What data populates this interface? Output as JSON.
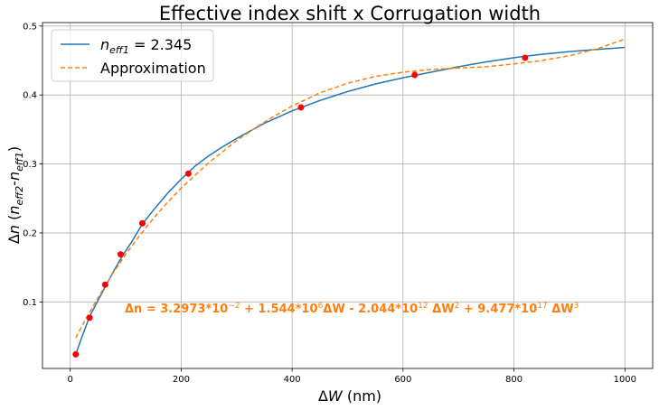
{
  "chart_data": {
    "type": "line",
    "title": "Effective index shift x Corrugation width",
    "xlabel_prefix": "Δ",
    "xlabel_var": "W",
    "xlabel_suffix": " (nm)",
    "ylabel_prefix": "Δ",
    "ylabel_var": "n",
    "ylabel_open": " (",
    "ylabel_n1": "n",
    "ylabel_sub1": "eff2",
    "ylabel_dash": "-",
    "ylabel_n2": "n",
    "ylabel_sub2": "eff1",
    "ylabel_close": ")",
    "xlim": [
      -50,
      1050
    ],
    "ylim": [
      0.0035,
      0.505
    ],
    "xticks": [
      0,
      200,
      400,
      600,
      800,
      1000
    ],
    "xtick_labels": [
      "0",
      "200",
      "400",
      "600",
      "800",
      "1000"
    ],
    "yticks": [
      0.1,
      0.2,
      0.3,
      0.4,
      0.5
    ],
    "ytick_labels": [
      "0.1",
      "0.2",
      "0.3",
      "0.4",
      "0.5"
    ],
    "grid": true,
    "legend_position": "top-left",
    "series": [
      {
        "name": "n_eff1 = 2.345",
        "legend_var": "n",
        "legend_sub": "eff1",
        "legend_value": " = 2.345",
        "style": "solid",
        "color": "#1f77b4",
        "x": [
          10,
          20,
          35,
          50,
          65,
          80,
          95,
          110,
          130,
          150,
          175,
          200,
          225,
          250,
          275,
          300,
          350,
          400,
          450,
          500,
          550,
          600,
          650,
          700,
          750,
          800,
          850,
          900,
          950,
          1000
        ],
        "y": [
          0.024,
          0.047,
          0.079,
          0.102,
          0.125,
          0.147,
          0.168,
          0.186,
          0.213,
          0.233,
          0.257,
          0.278,
          0.297,
          0.312,
          0.325,
          0.337,
          0.359,
          0.377,
          0.392,
          0.405,
          0.416,
          0.425,
          0.433,
          0.441,
          0.448,
          0.454,
          0.459,
          0.463,
          0.466,
          0.469
        ]
      },
      {
        "name": "Approximation",
        "legend_label": "Approximation",
        "style": "dashed",
        "color": "#ff7f0e",
        "x": [
          10,
          30,
          50,
          75,
          100,
          125,
          150,
          175,
          200,
          250,
          300,
          350,
          400,
          450,
          500,
          550,
          600,
          650,
          700,
          750,
          800,
          850,
          900,
          950,
          1000
        ],
        "y": [
          0.048,
          0.078,
          0.106,
          0.139,
          0.169,
          0.196,
          0.221,
          0.244,
          0.265,
          0.302,
          0.334,
          0.361,
          0.384,
          0.403,
          0.417,
          0.427,
          0.433,
          0.437,
          0.439,
          0.441,
          0.445,
          0.45,
          0.457,
          0.467,
          0.481
        ]
      }
    ],
    "markers": {
      "color": "#ff0000",
      "x": [
        10,
        35,
        63,
        91,
        130,
        213,
        416,
        621,
        820
      ],
      "y": [
        0.024,
        0.077,
        0.125,
        0.169,
        0.214,
        0.286,
        0.382,
        0.429,
        0.454
      ]
    },
    "annotation": {
      "color": "#ff7f0e",
      "parts": [
        {
          "t": "Δn = 3.2973*10",
          "sup": false
        },
        {
          "t": "−2",
          "sup": true
        },
        {
          "t": " + 1.544*10",
          "sup": false
        },
        {
          "t": "6",
          "sup": true
        },
        {
          "t": "ΔW - 2.044*10",
          "sup": false
        },
        {
          "t": "12",
          "sup": true
        },
        {
          "t": " ΔW",
          "sup": false
        },
        {
          "t": "2",
          "sup": true
        },
        {
          "t": " + 9.477*10",
          "sup": false
        },
        {
          "t": "17",
          "sup": true
        },
        {
          "t": " ΔW",
          "sup": false
        },
        {
          "t": "3",
          "sup": true
        }
      ]
    }
  }
}
